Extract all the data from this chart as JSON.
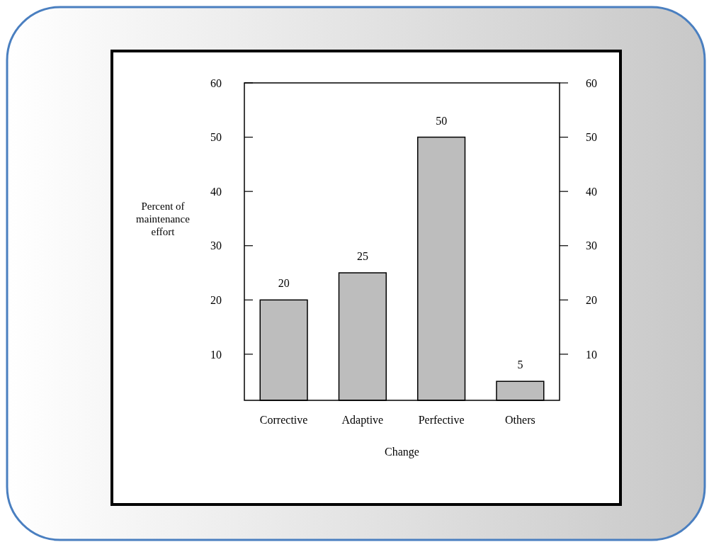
{
  "chart_data": {
    "type": "bar",
    "xlabel": "Change",
    "ylabel": "Percent of maintenance effort",
    "categories": [
      "Corrective",
      "Adaptive",
      "Perfective",
      "Others"
    ],
    "values": [
      20,
      25,
      50,
      5
    ],
    "color": "#bdbdbd",
    "data_labels": true,
    "ylim": [
      1.5,
      60
    ],
    "yticks": [
      10,
      20,
      30,
      40,
      50,
      60
    ],
    "y2lim": [
      1.5,
      60
    ],
    "y2ticks": [
      10,
      20,
      30,
      40,
      50,
      60
    ],
    "grid": false
  }
}
